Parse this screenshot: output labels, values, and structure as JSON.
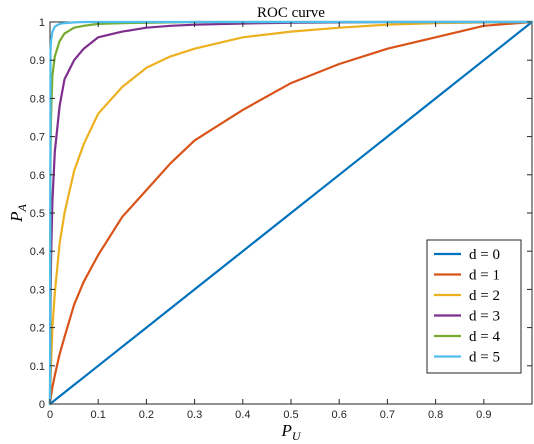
{
  "chart_data": {
    "type": "line",
    "title": "ROC curve",
    "xlabel": {
      "main": "P",
      "sub": "U"
    },
    "ylabel": {
      "main": "P",
      "sub": "A"
    },
    "xlim": [
      0,
      1
    ],
    "ylim": [
      0,
      1
    ],
    "x_ticks": [
      "0",
      "0.1",
      "0.2",
      "0.3",
      "0.4",
      "0.5",
      "0.6",
      "0.7",
      "0.8",
      "0.9"
    ],
    "y_ticks": [
      "0",
      "0.1",
      "0.2",
      "0.3",
      "0.4",
      "0.5",
      "0.6",
      "0.7",
      "0.8",
      "0.9",
      "1"
    ],
    "grid": false,
    "legend_position": "bottom-right",
    "x": [
      0,
      0.001,
      0.002,
      0.005,
      0.01,
      0.02,
      0.03,
      0.05,
      0.07,
      0.1,
      0.15,
      0.2,
      0.25,
      0.3,
      0.4,
      0.5,
      0.6,
      0.7,
      0.8,
      0.9,
      1
    ],
    "series": [
      {
        "name": "d = 0",
        "color": "#0072BD",
        "values": [
          0,
          0.001,
          0.002,
          0.005,
          0.01,
          0.02,
          0.03,
          0.05,
          0.07,
          0.1,
          0.15,
          0.2,
          0.25,
          0.3,
          0.4,
          0.5,
          0.6,
          0.7,
          0.8,
          0.9,
          1
        ]
      },
      {
        "name": "d = 1",
        "color": "#D95319",
        "values": [
          0,
          0.011,
          0.02,
          0.044,
          0.075,
          0.13,
          0.175,
          0.26,
          0.32,
          0.39,
          0.49,
          0.56,
          0.63,
          0.69,
          0.77,
          0.84,
          0.89,
          0.93,
          0.96,
          0.99,
          1
        ]
      },
      {
        "name": "d = 2",
        "color": "#EDB120",
        "values": [
          0,
          0.06,
          0.1,
          0.2,
          0.29,
          0.42,
          0.5,
          0.61,
          0.68,
          0.76,
          0.83,
          0.88,
          0.91,
          0.93,
          0.96,
          0.975,
          0.985,
          0.993,
          0.997,
          0.999,
          1
        ]
      },
      {
        "name": "d = 3",
        "color": "#7E2F8E",
        "values": [
          0,
          0.25,
          0.37,
          0.53,
          0.66,
          0.78,
          0.85,
          0.9,
          0.93,
          0.96,
          0.975,
          0.985,
          0.99,
          0.993,
          0.996,
          0.998,
          0.999,
          1,
          1,
          1,
          1
        ]
      },
      {
        "name": "d = 4",
        "color": "#77AC30",
        "values": [
          0,
          0.64,
          0.75,
          0.86,
          0.91,
          0.95,
          0.97,
          0.985,
          0.99,
          0.995,
          0.997,
          0.998,
          0.999,
          1,
          1,
          1,
          1,
          1,
          1,
          1,
          1
        ]
      },
      {
        "name": "d = 5",
        "color": "#4DBEEE",
        "values": [
          0,
          0.92,
          0.95,
          0.975,
          0.988,
          0.995,
          0.997,
          0.999,
          1,
          1,
          1,
          1,
          1,
          1,
          1,
          1,
          1,
          1,
          1,
          1,
          1
        ]
      }
    ]
  }
}
